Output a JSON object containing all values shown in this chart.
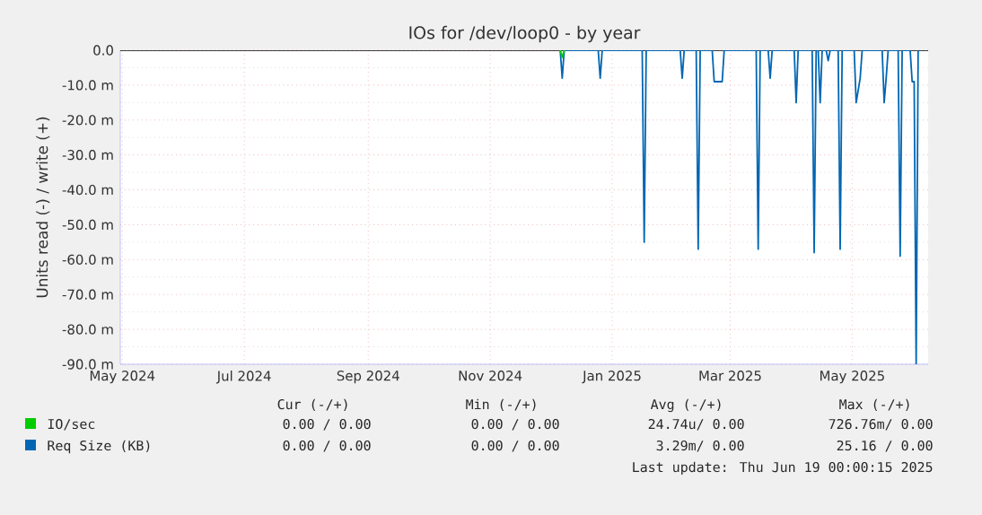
{
  "chart_data": {
    "type": "line",
    "title": "IOs for /dev/loop0 - by year",
    "ylabel": "Units read (-) / write (+)",
    "xlim": [
      "2024-04-30",
      "2025-06-08"
    ],
    "ylim": [
      -90,
      0
    ],
    "xticks": [
      {
        "value": "2024-05-01",
        "label": "May 2024"
      },
      {
        "value": "2024-07-01",
        "label": "Jul 2024"
      },
      {
        "value": "2024-09-01",
        "label": "Sep 2024"
      },
      {
        "value": "2024-11-01",
        "label": "Nov 2024"
      },
      {
        "value": "2025-01-01",
        "label": "Jan 2025"
      },
      {
        "value": "2025-03-01",
        "label": "Mar 2025"
      },
      {
        "value": "2025-05-01",
        "label": "May 2025"
      }
    ],
    "yticks": [
      {
        "value": 0,
        "label": "0.0"
      },
      {
        "value": -10,
        "label": "-10.0 m"
      },
      {
        "value": -20,
        "label": "-20.0 m"
      },
      {
        "value": -30,
        "label": "-30.0 m"
      },
      {
        "value": -40,
        "label": "-40.0 m"
      },
      {
        "value": -50,
        "label": "-50.0 m"
      },
      {
        "value": -60,
        "label": "-60.0 m"
      },
      {
        "value": -70,
        "label": "-70.0 m"
      },
      {
        "value": -80,
        "label": "-80.0 m"
      },
      {
        "value": -90,
        "label": "-90.0 m"
      }
    ],
    "grid": true,
    "legend": "bottom",
    "marker": "none",
    "ref_lines": [
      {
        "axis": "y",
        "value": 0,
        "color": "#000000"
      }
    ],
    "series": [
      {
        "name": "IO/sec",
        "color": "#00cc00",
        "x": [
          "2024-12-06",
          "2024-12-07",
          "2024-12-08"
        ],
        "values": [
          0,
          -2,
          0
        ]
      },
      {
        "name": "Req Size (KB)",
        "color": "#0066b3",
        "x": [
          "2024-12-06",
          "2024-12-07",
          "2024-12-08",
          "2024-12-25",
          "2024-12-26",
          "2024-12-27",
          "2025-01-16",
          "2025-01-17",
          "2025-01-18",
          "2025-02-04",
          "2025-02-05",
          "2025-02-06",
          "2025-02-12",
          "2025-02-13",
          "2025-02-14",
          "2025-02-20",
          "2025-02-21",
          "2025-02-25",
          "2025-02-26",
          "2025-03-14",
          "2025-03-15",
          "2025-03-16",
          "2025-03-20",
          "2025-03-21",
          "2025-03-22",
          "2025-04-02",
          "2025-04-03",
          "2025-04-04",
          "2025-04-11",
          "2025-04-12",
          "2025-04-13",
          "2025-04-14",
          "2025-04-15",
          "2025-04-16",
          "2025-04-18",
          "2025-04-19",
          "2025-04-20",
          "2025-04-24",
          "2025-04-25",
          "2025-04-26",
          "2025-05-02",
          "2025-05-03",
          "2025-05-05",
          "2025-05-06",
          "2025-05-16",
          "2025-05-17",
          "2025-05-18",
          "2025-05-19",
          "2025-05-24",
          "2025-05-25",
          "2025-05-26",
          "2025-05-30",
          "2025-05-31",
          "2025-06-01",
          "2025-06-02",
          "2025-06-03"
        ],
        "values": [
          0,
          -8,
          0,
          0,
          -8,
          0,
          0,
          -55,
          0,
          0,
          -8,
          0,
          0,
          -57,
          0,
          0,
          -9,
          -9,
          0,
          0,
          -57,
          0,
          0,
          -8,
          0,
          0,
          -15,
          0,
          0,
          -58,
          0,
          0,
          -15,
          0,
          0,
          -3,
          0,
          0,
          -57,
          0,
          0,
          -15,
          -8,
          0,
          0,
          -15,
          -8,
          0,
          0,
          -59,
          0,
          0,
          -9,
          -9,
          -90,
          0
        ]
      }
    ],
    "annotations": [
      "Cur (-/+)",
      "Min (-/+)",
      "Avg (-/+)",
      "Max (-/+)",
      "0.00 / 0.00",
      "0.00 / 0.00",
      "24.74u/ 0.00",
      "726.76m/ 0.00",
      "0.00 / 0.00",
      "0.00 / 0.00",
      "3.29m/ 0.00",
      "25.16 / 0.00",
      "Last update: Thu Jun 19 00:00:15 2025"
    ]
  }
}
